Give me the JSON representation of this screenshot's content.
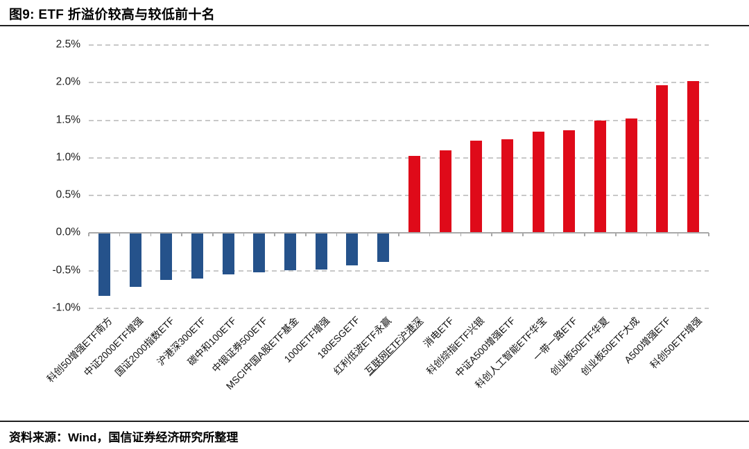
{
  "figure": {
    "caption": "图9: ETF 折溢价较高与较低前十名",
    "source_note": "资料来源：Wind，国信证券经济研究所整理"
  },
  "chart_data": {
    "type": "bar",
    "title": "图9: ETF 折溢价较高与较低前十名",
    "xlabel": "",
    "ylabel": "",
    "y_unit": "%",
    "ylim": [
      -1.0,
      2.5
    ],
    "grid": "horizontal dashed",
    "legend": "none",
    "categories": [
      "科创50增强ETF南方",
      "中证2000ETF增强",
      "国证2000指数ETF",
      "沪港深300ETF",
      "碳中和100ETF",
      "中银证券500ETF",
      "MSCI中国A股ETF基金",
      "1000ETF增强",
      "180ESGETF",
      "红利低波ETF永赢",
      "互联网ETF沪港深",
      "消电ETF",
      "科创综指ETF兴银",
      "中证A500增强ETF",
      "科创人工智能ETF华宝",
      "一带一路ETF",
      "创业板50ETF华夏",
      "创业板50ETF大成",
      "A500增强ETF",
      "科创50ETF增强"
    ],
    "values": [
      -0.83,
      -0.71,
      -0.62,
      -0.6,
      -0.55,
      -0.52,
      -0.49,
      -0.48,
      -0.43,
      -0.38,
      1.03,
      1.1,
      1.23,
      1.25,
      1.35,
      1.37,
      1.5,
      1.52,
      1.97,
      2.02
    ],
    "underlined_categories": [
      "互联网ETF沪港深"
    ],
    "y_ticks": [
      {
        "label": "2.5%",
        "value": 2.5
      },
      {
        "label": "2.0%",
        "value": 2.0
      },
      {
        "label": "1.5%",
        "value": 1.5
      },
      {
        "label": "1.0%",
        "value": 1.0
      },
      {
        "label": "0.5%",
        "value": 0.5
      },
      {
        "label": "0.0%",
        "value": 0.0
      },
      {
        "label": "-0.5%",
        "value": -0.5
      },
      {
        "label": "-1.0%",
        "value": -1.0
      }
    ],
    "colors": {
      "positive": "#DF0A19",
      "negative": "#25528B",
      "grid": "#C8C8C8",
      "axis": "#A8A8A8"
    }
  }
}
